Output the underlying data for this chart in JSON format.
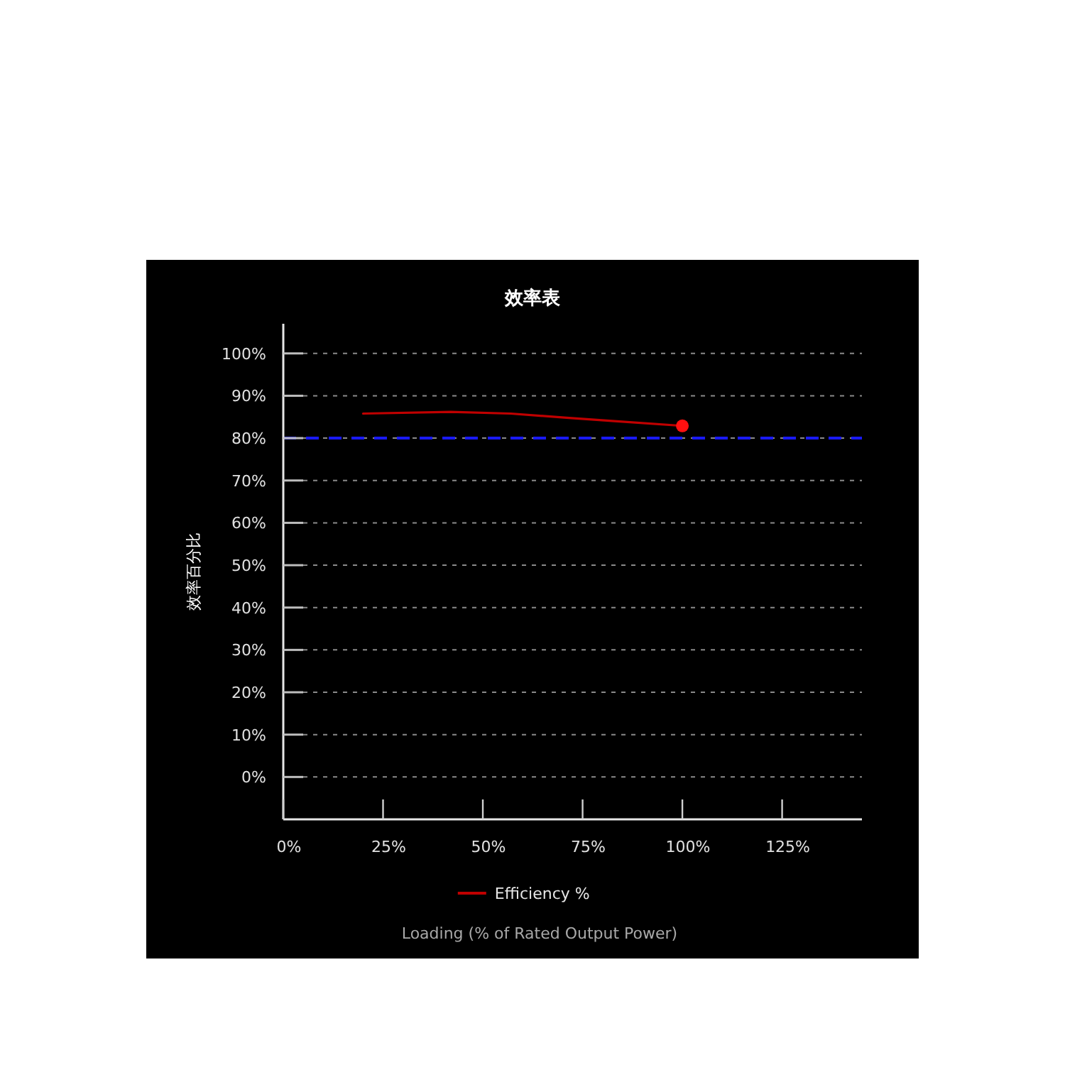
{
  "chart_data": {
    "type": "line",
    "title": "效率表",
    "xlabel": "Loading (% of Rated Output Power)",
    "ylabel": "效率百分比",
    "xlim": [
      0,
      145
    ],
    "xticks": [
      {
        "value": 0,
        "label": "0%"
      },
      {
        "value": 25,
        "label": "25%"
      },
      {
        "value": 50,
        "label": "50%"
      },
      {
        "value": 75,
        "label": "75%"
      },
      {
        "value": 100,
        "label": "100%"
      },
      {
        "value": 125,
        "label": "125%"
      }
    ],
    "ylim": [
      -10,
      107
    ],
    "yticks": [
      {
        "value": 0,
        "label": "0%"
      },
      {
        "value": 10,
        "label": "10%"
      },
      {
        "value": 20,
        "label": "20%"
      },
      {
        "value": 30,
        "label": "30%"
      },
      {
        "value": 40,
        "label": "40%"
      },
      {
        "value": 50,
        "label": "50%"
      },
      {
        "value": 60,
        "label": "60%"
      },
      {
        "value": 70,
        "label": "70%"
      },
      {
        "value": 80,
        "label": "80%"
      },
      {
        "value": 90,
        "label": "90%"
      },
      {
        "value": 100,
        "label": "100%"
      }
    ],
    "grid": "y",
    "legend": "bottom",
    "marker": "none",
    "line_style": "solid",
    "series": [
      {
        "name": "Efficiency %",
        "color": "#c00000",
        "x": [
          20,
          42,
          57,
          71,
          83,
          100
        ],
        "values": [
          85.8,
          86.2,
          85.8,
          84.8,
          84.0,
          82.9
        ]
      },
      {
        "type": "scatter",
        "color": "#ff1010",
        "marker": "circle",
        "x": [
          100
        ],
        "values": [
          82.9
        ]
      }
    ],
    "ref_lines": [
      {
        "axis": "y",
        "value": 80,
        "color": "#1a1aff",
        "line_style": "dashed"
      }
    ]
  }
}
